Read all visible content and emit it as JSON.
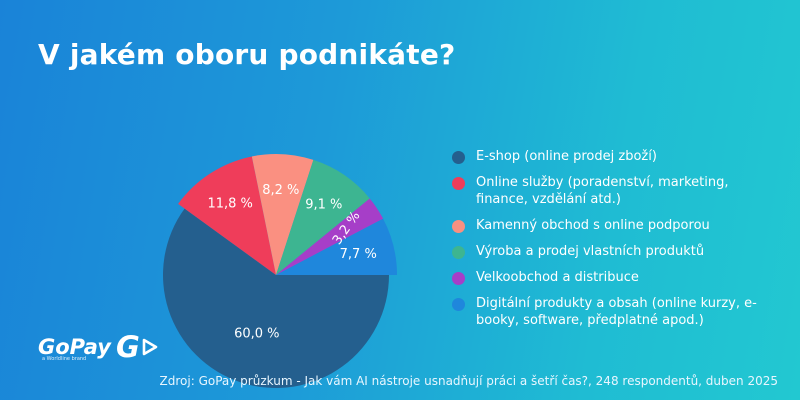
{
  "title": "V jakém oboru podnikáte?",
  "source": "Zdroj: GoPay průzkum - Jak vám AI nástroje usnadňují práci a šetří čas?, 248 respondentů, duben 2025",
  "logo": {
    "word": "GoPay",
    "letter": "G",
    "sub": "a Worldline brand"
  },
  "chart_data": {
    "type": "pie",
    "title": "V jakém oboru podnikáte?",
    "slices": [
      {
        "label": "E-shop (online prodej zboží)",
        "value": 60.0,
        "display": "60,0 %",
        "color": "#245f8e"
      },
      {
        "label": "Online služby (poradenství, marketing, finance, vzdělání atd.)",
        "value": 11.8,
        "display": "11,8 %",
        "color": "#ef3d5a"
      },
      {
        "label": "Kamenný obchod s online podporou",
        "value": 8.2,
        "display": "8,2 %",
        "color": "#fa9081"
      },
      {
        "label": "Výroba a prodej vlastních produktů",
        "value": 9.1,
        "display": "9,1 %",
        "color": "#3db591"
      },
      {
        "label": "Velkoobchod a distribuce",
        "value": 3.2,
        "display": "3,2 %",
        "color": "#a63ec8"
      },
      {
        "label": "Digitální produkty a obsah (online kurzy, e-booky, software, předplatné apod.)",
        "value": 7.7,
        "display": "7,7 %",
        "color": "#1f87dc"
      }
    ],
    "legend_position": "right"
  }
}
